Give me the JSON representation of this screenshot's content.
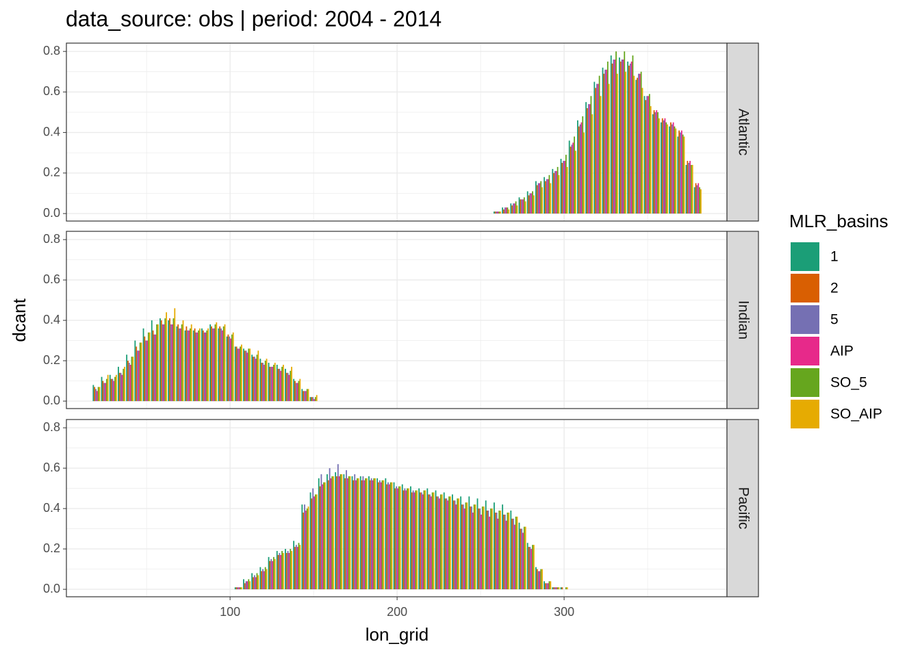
{
  "chart_data": {
    "type": "bar",
    "title": "data_source: obs | period: 2004 - 2014",
    "x_label": "lon_grid",
    "y_label": "dcant",
    "xlim": [
      2,
      397.5
    ],
    "xticks": [
      100,
      200,
      300
    ],
    "ylim": [
      -0.037,
      0.841
    ],
    "yticks": [
      {
        "value": 0,
        "label": "0.0"
      },
      0.2,
      0.4,
      0.6,
      0.8
    ],
    "grid": true,
    "legend": {
      "title": "MLR_basins",
      "position": "right",
      "entries": [
        {
          "name": "1",
          "color": "#1b9e77"
        },
        {
          "name": "2",
          "color": "#d95f02"
        },
        {
          "name": "5",
          "color": "#7570b3"
        },
        {
          "name": "AIP",
          "color": "#e7298a"
        },
        {
          "name": "SO_5",
          "color": "#66a61e"
        },
        {
          "name": "SO_AIP",
          "color": "#e6ab02"
        }
      ]
    },
    "facets": [
      {
        "name": "Atlantic",
        "x": [
          260,
          265,
          270,
          275,
          280,
          285,
          290,
          295,
          300,
          305,
          310,
          315,
          320,
          325,
          330,
          335,
          340,
          345,
          350,
          355,
          360,
          365,
          370,
          375,
          380
        ],
        "series": [
          {
            "values": [
              0.01,
              0.03,
              0.05,
              0.08,
              0.11,
              0.16,
              0.18,
              0.22,
              0.27,
              0.36,
              0.46,
              0.55,
              0.65,
              0.72,
              0.78,
              0.77,
              0.75,
              0.66,
              0.58,
              0.49,
              0.45,
              0.43,
              0.38,
              0.24,
              0.13
            ]
          },
          {
            "values": [
              0.01,
              0.02,
              0.04,
              0.07,
              0.09,
              0.14,
              0.16,
              0.2,
              0.25,
              0.33,
              0.43,
              0.52,
              0.62,
              0.69,
              0.74,
              0.75,
              0.73,
              0.67,
              0.56,
              0.51,
              0.47,
              0.45,
              0.41,
              0.26,
              0.15
            ]
          },
          {
            "values": [
              0.01,
              0.03,
              0.05,
              0.07,
              0.1,
              0.15,
              0.17,
              0.21,
              0.26,
              0.34,
              0.44,
              0.54,
              0.64,
              0.71,
              0.76,
              0.76,
              0.74,
              0.69,
              0.58,
              0.5,
              0.46,
              0.44,
              0.4,
              0.25,
              0.14
            ]
          },
          {
            "values": [
              0.01,
              0.03,
              0.05,
              0.07,
              0.1,
              0.15,
              0.17,
              0.21,
              0.26,
              0.35,
              0.45,
              0.54,
              0.64,
              0.71,
              0.76,
              0.76,
              0.75,
              0.69,
              0.58,
              0.51,
              0.47,
              0.45,
              0.41,
              0.26,
              0.15
            ]
          },
          {
            "values": [
              0.01,
              0.03,
              0.06,
              0.08,
              0.11,
              0.16,
              0.19,
              0.23,
              0.29,
              0.38,
              0.48,
              0.58,
              0.68,
              0.75,
              0.8,
              0.8,
              0.78,
              0.7,
              0.59,
              0.5,
              0.45,
              0.43,
              0.39,
              0.24,
              0.13
            ]
          },
          {
            "values": [
              0.01,
              0.02,
              0.04,
              0.06,
              0.09,
              0.13,
              0.15,
              0.19,
              0.23,
              0.31,
              0.4,
              0.49,
              0.58,
              0.64,
              0.69,
              0.7,
              0.68,
              0.62,
              0.53,
              0.47,
              0.44,
              0.42,
              0.38,
              0.24,
              0.12
            ]
          }
        ]
      },
      {
        "name": "Indian",
        "x": [
          20,
          25,
          30,
          35,
          40,
          45,
          50,
          55,
          60,
          65,
          70,
          75,
          80,
          85,
          90,
          95,
          100,
          105,
          110,
          115,
          120,
          125,
          130,
          135,
          140,
          145,
          150
        ],
        "series": [
          {
            "values": [
              0.08,
              0.12,
              0.13,
              0.17,
              0.23,
              0.3,
              0.36,
              0.4,
              0.41,
              0.4,
              0.37,
              0.35,
              0.35,
              0.36,
              0.38,
              0.36,
              0.32,
              0.27,
              0.26,
              0.23,
              0.21,
              0.19,
              0.18,
              0.16,
              0.11,
              0.06,
              0.02
            ]
          },
          {
            "values": [
              0.07,
              0.1,
              0.11,
              0.14,
              0.2,
              0.27,
              0.32,
              0.35,
              0.4,
              0.41,
              0.38,
              0.37,
              0.36,
              0.35,
              0.37,
              0.37,
              0.33,
              0.27,
              0.25,
              0.22,
              0.19,
              0.17,
              0.16,
              0.14,
              0.1,
              0.05,
              0.02
            ]
          },
          {
            "values": [
              0.06,
              0.09,
              0.11,
              0.14,
              0.19,
              0.25,
              0.3,
              0.33,
              0.38,
              0.38,
              0.36,
              0.35,
              0.34,
              0.34,
              0.36,
              0.36,
              0.32,
              0.26,
              0.25,
              0.22,
              0.19,
              0.17,
              0.16,
              0.14,
              0.09,
              0.05,
              0.02
            ]
          },
          {
            "values": [
              0.05,
              0.09,
              0.1,
              0.13,
              0.18,
              0.25,
              0.3,
              0.33,
              0.38,
              0.38,
              0.36,
              0.35,
              0.34,
              0.34,
              0.36,
              0.35,
              0.31,
              0.26,
              0.24,
              0.21,
              0.18,
              0.17,
              0.15,
              0.13,
              0.09,
              0.05,
              0.01
            ]
          },
          {
            "values": [
              0.07,
              0.11,
              0.12,
              0.16,
              0.22,
              0.29,
              0.34,
              0.38,
              0.41,
              0.41,
              0.38,
              0.36,
              0.35,
              0.35,
              0.38,
              0.37,
              0.33,
              0.27,
              0.26,
              0.23,
              0.2,
              0.18,
              0.17,
              0.15,
              0.1,
              0.06,
              0.02
            ]
          },
          {
            "values": [
              0.07,
              0.13,
              0.13,
              0.17,
              0.22,
              0.29,
              0.34,
              0.38,
              0.44,
              0.46,
              0.4,
              0.38,
              0.36,
              0.36,
              0.39,
              0.38,
              0.34,
              0.28,
              0.26,
              0.25,
              0.21,
              0.19,
              0.18,
              0.17,
              0.11,
              0.06,
              0.03
            ]
          }
        ]
      },
      {
        "name": "Pacific",
        "x": [
          105,
          110,
          115,
          120,
          125,
          130,
          135,
          140,
          145,
          150,
          155,
          160,
          165,
          170,
          175,
          180,
          185,
          190,
          195,
          200,
          205,
          210,
          215,
          220,
          225,
          230,
          235,
          240,
          245,
          250,
          255,
          260,
          265,
          270,
          275,
          280,
          285,
          290,
          295,
          300
        ],
        "series": [
          {
            "values": [
              0.01,
              0.05,
              0.08,
              0.11,
              0.16,
              0.19,
              0.2,
              0.24,
              0.42,
              0.48,
              0.55,
              0.57,
              0.58,
              0.57,
              0.56,
              0.56,
              0.56,
              0.55,
              0.55,
              0.53,
              0.52,
              0.51,
              0.5,
              0.5,
              0.49,
              0.48,
              0.47,
              0.46,
              0.46,
              0.45,
              0.44,
              0.43,
              0.42,
              0.39,
              0.33,
              0.23,
              0.11,
              0.04,
              0.01,
              0.01
            ]
          },
          {
            "values": [
              0.01,
              0.03,
              0.06,
              0.09,
              0.14,
              0.17,
              0.18,
              0.21,
              0.38,
              0.45,
              0.51,
              0.54,
              0.56,
              0.55,
              0.54,
              0.54,
              0.54,
              0.53,
              0.52,
              0.5,
              0.49,
              0.48,
              0.48,
              0.47,
              0.46,
              0.45,
              0.44,
              0.42,
              0.41,
              0.4,
              0.39,
              0.38,
              0.37,
              0.35,
              0.3,
              0.21,
              0.1,
              0.03,
              0.01,
              0.01
            ]
          },
          {
            "values": [
              0.01,
              0.04,
              0.07,
              0.1,
              0.15,
              0.18,
              0.19,
              0.22,
              0.42,
              0.5,
              0.57,
              0.6,
              0.62,
              0.59,
              0.57,
              0.56,
              0.55,
              0.54,
              0.53,
              0.51,
              0.5,
              0.49,
              0.48,
              0.47,
              0.46,
              0.45,
              0.44,
              0.42,
              0.41,
              0.4,
              0.39,
              0.38,
              0.37,
              0.35,
              0.3,
              0.21,
              0.09,
              0.03,
              0.01,
              0
            ]
          },
          {
            "values": [
              0.01,
              0.04,
              0.06,
              0.09,
              0.14,
              0.17,
              0.18,
              0.21,
              0.39,
              0.46,
              0.52,
              0.55,
              0.56,
              0.55,
              0.54,
              0.54,
              0.54,
              0.53,
              0.52,
              0.5,
              0.49,
              0.48,
              0.47,
              0.46,
              0.45,
              0.44,
              0.42,
              0.4,
              0.38,
              0.37,
              0.36,
              0.35,
              0.34,
              0.32,
              0.28,
              0.2,
              0.09,
              0.03,
              0.01,
              0
            ]
          },
          {
            "values": [
              0.01,
              0.05,
              0.08,
              0.11,
              0.16,
              0.19,
              0.2,
              0.23,
              0.4,
              0.47,
              0.53,
              0.56,
              0.57,
              0.56,
              0.55,
              0.55,
              0.55,
              0.54,
              0.53,
              0.51,
              0.5,
              0.49,
              0.49,
              0.48,
              0.47,
              0.46,
              0.45,
              0.43,
              0.42,
              0.41,
              0.4,
              0.39,
              0.38,
              0.36,
              0.31,
              0.22,
              0.1,
              0.04,
              0.01,
              0.01
            ]
          },
          {
            "values": [
              0.01,
              0.04,
              0.07,
              0.1,
              0.15,
              0.18,
              0.19,
              0.22,
              0.41,
              0.47,
              0.53,
              0.56,
              0.57,
              0.56,
              0.55,
              0.55,
              0.55,
              0.54,
              0.53,
              0.51,
              0.5,
              0.49,
              0.49,
              0.48,
              0.47,
              0.46,
              0.45,
              0.43,
              0.42,
              0.41,
              0.4,
              0.39,
              0.38,
              0.36,
              0.31,
              0.22,
              0.1,
              0.04,
              0.01,
              0.01
            ]
          }
        ]
      }
    ]
  }
}
